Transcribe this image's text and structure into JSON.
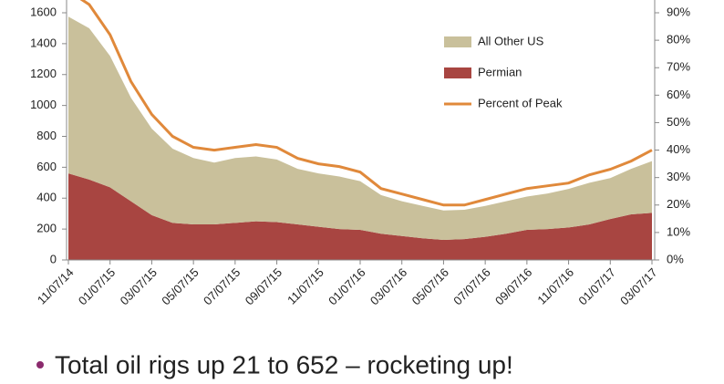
{
  "chart_data": {
    "type": "stacked-area-line",
    "categories": [
      "11/07/14",
      null,
      "01/07/15",
      null,
      "03/07/15",
      null,
      "05/07/15",
      null,
      "07/07/15",
      null,
      "09/07/15",
      null,
      "11/07/15",
      null,
      "01/07/16",
      null,
      "03/07/16",
      null,
      "05/07/16",
      null,
      "07/07/16",
      null,
      "09/07/16",
      null,
      "11/07/16",
      null,
      "01/07/17",
      null,
      "03/07/17"
    ],
    "series": [
      {
        "name": "All Other US",
        "color": "#c9c09b",
        "values": [
          1015,
          980,
          850,
          670,
          560,
          480,
          430,
          400,
          420,
          420,
          405,
          360,
          345,
          340,
          315,
          250,
          225,
          210,
          190,
          190,
          200,
          210,
          215,
          230,
          250,
          270,
          265,
          295,
          335
        ]
      },
      {
        "name": "Permian",
        "color": "#a84541",
        "values": [
          560,
          520,
          470,
          380,
          290,
          240,
          230,
          230,
          240,
          250,
          245,
          230,
          215,
          200,
          195,
          170,
          155,
          140,
          130,
          135,
          150,
          170,
          195,
          200,
          210,
          230,
          265,
          295,
          305
        ]
      },
      {
        "name": "Percent of Peak",
        "color": "#e0893b",
        "axis": "y2",
        "values": [
          98,
          93,
          82,
          65,
          53,
          45,
          41,
          40,
          41,
          42,
          41,
          37,
          35,
          34,
          32,
          26,
          24,
          22,
          20,
          20,
          22,
          24,
          26,
          27,
          28,
          31,
          33,
          36,
          40
        ]
      }
    ],
    "ylim": [
      0,
      1600
    ],
    "yticks": [
      0,
      200,
      400,
      600,
      800,
      1000,
      1200,
      1400,
      1600
    ],
    "y2lim": [
      0,
      90
    ],
    "y2ticks": [
      {
        "value": 0,
        "label": "0%"
      },
      {
        "value": 10,
        "label": "10%"
      },
      {
        "value": 20,
        "label": "20%"
      },
      {
        "value": 30,
        "label": "30%"
      },
      {
        "value": 40,
        "label": "40%"
      },
      {
        "value": 50,
        "label": "50%"
      },
      {
        "value": 60,
        "label": "60%"
      },
      {
        "value": 70,
        "label": "70%"
      },
      {
        "value": 80,
        "label": "80%"
      },
      {
        "value": 90,
        "label": "90%"
      }
    ],
    "legend": "upper-right"
  },
  "bullet": "Total oil rigs up 21 to 652 – rocketing up!"
}
